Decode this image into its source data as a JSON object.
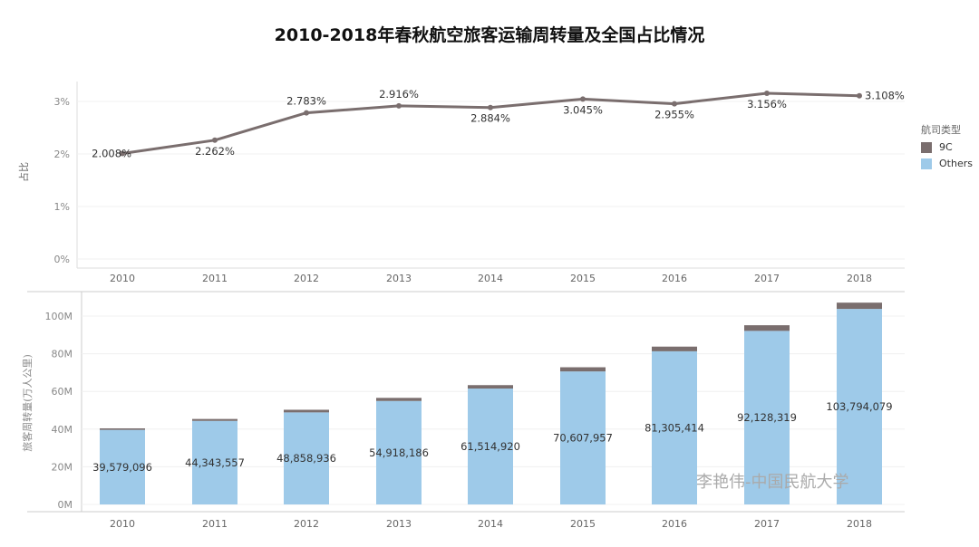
{
  "title": "2010-2018年春秋航空旅客运输周转量及全国占比情况",
  "legend": {
    "title": "航司类型",
    "items": [
      {
        "label": "9C",
        "color": "#7a6e6e"
      },
      {
        "label": "Others",
        "color": "#9ecae9"
      }
    ]
  },
  "watermark": "李艳伟-中国民航大学",
  "chart_data": [
    {
      "type": "line",
      "ylabel": "占比",
      "categories": [
        "2010",
        "2011",
        "2012",
        "2013",
        "2014",
        "2015",
        "2016",
        "2017",
        "2018"
      ],
      "values": [
        2.008,
        2.262,
        2.783,
        2.916,
        2.884,
        3.045,
        2.955,
        3.156,
        3.108
      ],
      "labels": [
        "2.008%",
        "2.262%",
        "2.783%",
        "2.916%",
        "2.884%",
        "3.045%",
        "2.955%",
        "3.156%",
        "3.108%"
      ],
      "yticks": [
        "0%",
        "1%",
        "2%",
        "3%"
      ],
      "ylim": [
        0,
        3.4
      ],
      "color": "#7a6e6e",
      "grid": true
    },
    {
      "type": "bar",
      "stacked": true,
      "ylabel": "旅客周转量(万人公里)",
      "categories": [
        "2010",
        "2011",
        "2012",
        "2013",
        "2014",
        "2015",
        "2016",
        "2017",
        "2018"
      ],
      "series": [
        {
          "name": "Others",
          "values": [
            39579096,
            44343557,
            48858936,
            54918186,
            61514920,
            70607957,
            81305414,
            92128319,
            103794079
          ],
          "labels": [
            "39,579,096",
            "44,343,557",
            "48,858,936",
            "54,918,186",
            "61,514,920",
            "70,607,957",
            "81,305,414",
            "92,128,319",
            "103,794,079"
          ]
        },
        {
          "name": "9C",
          "values": [
            811000,
            1026000,
            1399000,
            1650000,
            1827000,
            2218000,
            2476000,
            3002000,
            3329000
          ]
        }
      ],
      "yticks": [
        "0M",
        "20M",
        "40M",
        "60M",
        "80M",
        "100M"
      ],
      "ylim": [
        0,
        110000000
      ],
      "grid": true
    }
  ]
}
